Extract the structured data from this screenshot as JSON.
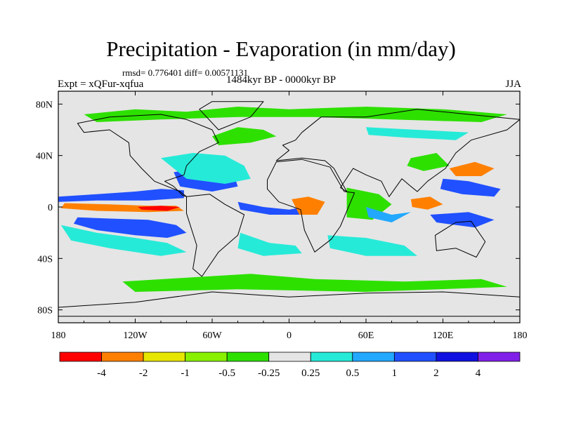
{
  "title": "Precipitation - Evaporation (in mm/day)",
  "stats": "rmsd= 0.776401 diff= 0.00571131",
  "experiment": "Expt = xQFur-xqfua",
  "period": "1484kyr BP - 0000kyr BP",
  "season": "JJA",
  "colors": {
    "c1": "#ff0000",
    "c2": "#ff8000",
    "c3": "#e6e600",
    "c4": "#88f000",
    "c5": "#2de000",
    "c6": "#e5e5e5",
    "c7": "#26ead8",
    "c8": "#22a8ff",
    "c9": "#2050ff",
    "c10": "#1010e0",
    "c11": "#8020e8"
  },
  "chart_data": {
    "type": "heatmap",
    "title": "Precipitation - Evaporation (in mm/day)",
    "xlabel": "",
    "ylabel": "",
    "xlim": [
      -180,
      180
    ],
    "ylim": [
      -90,
      90
    ],
    "x_ticks": [
      {
        "v": -180,
        "label": "180"
      },
      {
        "v": -120,
        "label": "120W"
      },
      {
        "v": -60,
        "label": "60W"
      },
      {
        "v": 0,
        "label": "0"
      },
      {
        "v": 60,
        "label": "60E"
      },
      {
        "v": 120,
        "label": "120E"
      },
      {
        "v": 180,
        "label": "180"
      }
    ],
    "y_ticks": [
      {
        "v": 80,
        "label": "80N"
      },
      {
        "v": 40,
        "label": "40N"
      },
      {
        "v": 0,
        "label": "0"
      },
      {
        "v": -40,
        "label": "40S"
      },
      {
        "v": -80,
        "label": "80S"
      }
    ],
    "levels": [
      -4,
      -2,
      -1,
      -0.5,
      -0.25,
      0.25,
      0.5,
      1,
      2,
      4
    ],
    "level_labels": [
      "-4",
      "-2",
      "-1",
      "-0.5",
      "-0.25",
      "0.25",
      "0.5",
      "1",
      "2",
      "4"
    ],
    "color_keys": [
      "c1",
      "c2",
      "c3",
      "c4",
      "c5",
      "c6",
      "c7",
      "c8",
      "c9",
      "c10",
      "c11"
    ],
    "regions": [
      {
        "name": "tropical-pacific-north",
        "c": "c9",
        "pts": [
          [
            -180,
            8
          ],
          [
            -150,
            10
          ],
          [
            -120,
            12
          ],
          [
            -100,
            14
          ],
          [
            -82,
            13
          ],
          [
            -82,
            7
          ],
          [
            -110,
            5
          ],
          [
            -150,
            5
          ],
          [
            -180,
            4
          ]
        ]
      },
      {
        "name": "pacific-itcz-neg",
        "c": "c2",
        "pts": [
          [
            -175,
            3
          ],
          [
            -140,
            2
          ],
          [
            -110,
            1
          ],
          [
            -88,
            1
          ],
          [
            -82,
            -3
          ],
          [
            -110,
            -4
          ],
          [
            -150,
            -3
          ],
          [
            -178,
            -1
          ]
        ]
      },
      {
        "name": "pacific-itcz-core",
        "c": "c1",
        "pts": [
          [
            -118,
            0
          ],
          [
            -100,
            1
          ],
          [
            -85,
            0
          ],
          [
            -95,
            -3
          ],
          [
            -115,
            -2
          ]
        ]
      },
      {
        "name": "south-pacific-blue",
        "c": "c9",
        "pts": [
          [
            -165,
            -8
          ],
          [
            -140,
            -9
          ],
          [
            -110,
            -10
          ],
          [
            -88,
            -14
          ],
          [
            -80,
            -20
          ],
          [
            -95,
            -24
          ],
          [
            -120,
            -22
          ],
          [
            -150,
            -18
          ],
          [
            -168,
            -13
          ]
        ]
      },
      {
        "name": "south-pacific-cyan",
        "c": "c7",
        "pts": [
          [
            -178,
            -14
          ],
          [
            -150,
            -20
          ],
          [
            -120,
            -24
          ],
          [
            -95,
            -28
          ],
          [
            -80,
            -35
          ],
          [
            -100,
            -38
          ],
          [
            -140,
            -32
          ],
          [
            -170,
            -26
          ]
        ]
      },
      {
        "name": "atlantic-blue",
        "c": "c9",
        "pts": [
          [
            -90,
            27
          ],
          [
            -75,
            30
          ],
          [
            -55,
            28
          ],
          [
            -42,
            22
          ],
          [
            -40,
            16
          ],
          [
            -60,
            12
          ],
          [
            -85,
            16
          ]
        ]
      },
      {
        "name": "atlantic-cyan",
        "c": "c7",
        "pts": [
          [
            -100,
            38
          ],
          [
            -75,
            42
          ],
          [
            -50,
            40
          ],
          [
            -35,
            32
          ],
          [
            -30,
            22
          ],
          [
            -50,
            18
          ],
          [
            -80,
            22
          ]
        ]
      },
      {
        "name": "atlantic-equator",
        "c": "c9",
        "pts": [
          [
            -40,
            4
          ],
          [
            -20,
            0
          ],
          [
            0,
            -2
          ],
          [
            12,
            0
          ],
          [
            8,
            -6
          ],
          [
            -15,
            -6
          ],
          [
            -38,
            -2
          ]
        ]
      },
      {
        "name": "south-atlantic-cyan",
        "c": "c7",
        "pts": [
          [
            -38,
            -20
          ],
          [
            -15,
            -28
          ],
          [
            5,
            -30
          ],
          [
            10,
            -36
          ],
          [
            -20,
            -38
          ],
          [
            -40,
            -32
          ]
        ]
      },
      {
        "name": "north-atlantic-green",
        "c": "c5",
        "pts": [
          [
            -60,
            55
          ],
          [
            -40,
            62
          ],
          [
            -20,
            60
          ],
          [
            -10,
            55
          ],
          [
            -30,
            50
          ],
          [
            -55,
            48
          ]
        ]
      },
      {
        "name": "africa-neg",
        "c": "c2",
        "pts": [
          [
            2,
            6
          ],
          [
            15,
            8
          ],
          [
            28,
            4
          ],
          [
            22,
            -6
          ],
          [
            8,
            -6
          ]
        ]
      },
      {
        "name": "indian-ocean-green",
        "c": "c5",
        "pts": [
          [
            45,
            15
          ],
          [
            70,
            10
          ],
          [
            80,
            2
          ],
          [
            65,
            -10
          ],
          [
            45,
            -8
          ]
        ]
      },
      {
        "name": "indian-ocean-blue",
        "c": "c8",
        "pts": [
          [
            60,
            0
          ],
          [
            80,
            -6
          ],
          [
            95,
            -4
          ],
          [
            80,
            -12
          ],
          [
            62,
            -8
          ]
        ]
      },
      {
        "name": "indian-south-cyan",
        "c": "c7",
        "pts": [
          [
            30,
            -22
          ],
          [
            60,
            -24
          ],
          [
            90,
            -30
          ],
          [
            100,
            -38
          ],
          [
            60,
            -38
          ],
          [
            32,
            -32
          ]
        ]
      },
      {
        "name": "wpac-orange",
        "c": "c2",
        "pts": [
          [
            125,
            30
          ],
          [
            145,
            35
          ],
          [
            160,
            30
          ],
          [
            150,
            24
          ],
          [
            130,
            24
          ]
        ]
      },
      {
        "name": "wpac-blue",
        "c": "c9",
        "pts": [
          [
            120,
            22
          ],
          [
            140,
            20
          ],
          [
            165,
            14
          ],
          [
            160,
            8
          ],
          [
            135,
            10
          ],
          [
            118,
            14
          ]
        ]
      },
      {
        "name": "china-green",
        "c": "c5",
        "pts": [
          [
            95,
            38
          ],
          [
            115,
            42
          ],
          [
            125,
            32
          ],
          [
            105,
            28
          ],
          [
            92,
            32
          ]
        ]
      },
      {
        "name": "maritime-orange",
        "c": "c2",
        "pts": [
          [
            95,
            6
          ],
          [
            110,
            8
          ],
          [
            120,
            2
          ],
          [
            108,
            -2
          ],
          [
            96,
            0
          ]
        ]
      },
      {
        "name": "australia-north-blue",
        "c": "c9",
        "pts": [
          [
            110,
            -6
          ],
          [
            140,
            -4
          ],
          [
            160,
            -10
          ],
          [
            145,
            -16
          ],
          [
            115,
            -12
          ]
        ]
      },
      {
        "name": "southern-ocean-green",
        "c": "c5",
        "pts": [
          [
            -130,
            -58
          ],
          [
            -80,
            -55
          ],
          [
            -30,
            -52
          ],
          [
            20,
            -56
          ],
          [
            90,
            -58
          ],
          [
            150,
            -56
          ],
          [
            170,
            -62
          ],
          [
            60,
            -66
          ],
          [
            -40,
            -64
          ],
          [
            -120,
            -66
          ]
        ]
      },
      {
        "name": "arctic-green",
        "c": "c5",
        "pts": [
          [
            -160,
            72
          ],
          [
            -120,
            76
          ],
          [
            -80,
            74
          ],
          [
            -40,
            78
          ],
          [
            0,
            76
          ],
          [
            60,
            78
          ],
          [
            120,
            76
          ],
          [
            170,
            72
          ],
          [
            150,
            66
          ],
          [
            80,
            68
          ],
          [
            20,
            70
          ],
          [
            -40,
            70
          ],
          [
            -100,
            68
          ],
          [
            -150,
            66
          ]
        ]
      },
      {
        "name": "siberia-cyan",
        "c": "c7",
        "pts": [
          [
            60,
            62
          ],
          [
            100,
            60
          ],
          [
            140,
            58
          ],
          [
            130,
            52
          ],
          [
            90,
            54
          ],
          [
            62,
            56
          ]
        ]
      }
    ],
    "continents": [
      {
        "name": "north-america",
        "pts": [
          [
            -165,
            65
          ],
          [
            -140,
            70
          ],
          [
            -100,
            72
          ],
          [
            -80,
            68
          ],
          [
            -60,
            60
          ],
          [
            -55,
            50
          ],
          [
            -70,
            43
          ],
          [
            -80,
            32
          ],
          [
            -82,
            25
          ],
          [
            -97,
            20
          ],
          [
            -90,
            16
          ],
          [
            -83,
            9
          ],
          [
            -80,
            8
          ],
          [
            -85,
            12
          ],
          [
            -105,
            20
          ],
          [
            -115,
            30
          ],
          [
            -124,
            40
          ],
          [
            -125,
            50
          ],
          [
            -140,
            60
          ],
          [
            -160,
            58
          ]
        ]
      },
      {
        "name": "south-america",
        "pts": [
          [
            -80,
            8
          ],
          [
            -62,
            10
          ],
          [
            -50,
            2
          ],
          [
            -35,
            -6
          ],
          [
            -40,
            -22
          ],
          [
            -55,
            -35
          ],
          [
            -68,
            -54
          ],
          [
            -75,
            -48
          ],
          [
            -72,
            -30
          ],
          [
            -80,
            -5
          ]
        ]
      },
      {
        "name": "greenland",
        "pts": [
          [
            -55,
            60
          ],
          [
            -30,
            70
          ],
          [
            -20,
            82
          ],
          [
            -60,
            82
          ],
          [
            -70,
            76
          ]
        ]
      },
      {
        "name": "eurasia",
        "pts": [
          [
            -10,
            36
          ],
          [
            0,
            44
          ],
          [
            -5,
            48
          ],
          [
            5,
            52
          ],
          [
            10,
            58
          ],
          [
            25,
            70
          ],
          [
            60,
            70
          ],
          [
            100,
            76
          ],
          [
            140,
            72
          ],
          [
            180,
            68
          ],
          [
            170,
            60
          ],
          [
            142,
            52
          ],
          [
            130,
            42
          ],
          [
            122,
            30
          ],
          [
            108,
            20
          ],
          [
            100,
            12
          ],
          [
            95,
            16
          ],
          [
            88,
            22
          ],
          [
            78,
            8
          ],
          [
            72,
            20
          ],
          [
            60,
            25
          ],
          [
            50,
            30
          ],
          [
            40,
            15
          ],
          [
            45,
            12
          ],
          [
            35,
            30
          ],
          [
            28,
            36
          ],
          [
            10,
            38
          ]
        ]
      },
      {
        "name": "africa",
        "pts": [
          [
            -17,
            21
          ],
          [
            -10,
            35
          ],
          [
            10,
            37
          ],
          [
            32,
            31
          ],
          [
            43,
            12
          ],
          [
            51,
            11
          ],
          [
            40,
            -15
          ],
          [
            33,
            -25
          ],
          [
            20,
            -35
          ],
          [
            12,
            -18
          ],
          [
            9,
            -2
          ],
          [
            -8,
            4
          ],
          [
            -17,
            14
          ]
        ]
      },
      {
        "name": "australia",
        "pts": [
          [
            114,
            -22
          ],
          [
            130,
            -12
          ],
          [
            142,
            -11
          ],
          [
            153,
            -27
          ],
          [
            146,
            -39
          ],
          [
            130,
            -32
          ],
          [
            115,
            -34
          ]
        ]
      },
      {
        "name": "antarctica",
        "pts": [
          [
            -180,
            -78
          ],
          [
            -120,
            -74
          ],
          [
            -60,
            -66
          ],
          [
            0,
            -70
          ],
          [
            60,
            -67
          ],
          [
            120,
            -66
          ],
          [
            180,
            -70
          ],
          [
            180,
            -85
          ],
          [
            -180,
            -85
          ]
        ]
      }
    ]
  }
}
